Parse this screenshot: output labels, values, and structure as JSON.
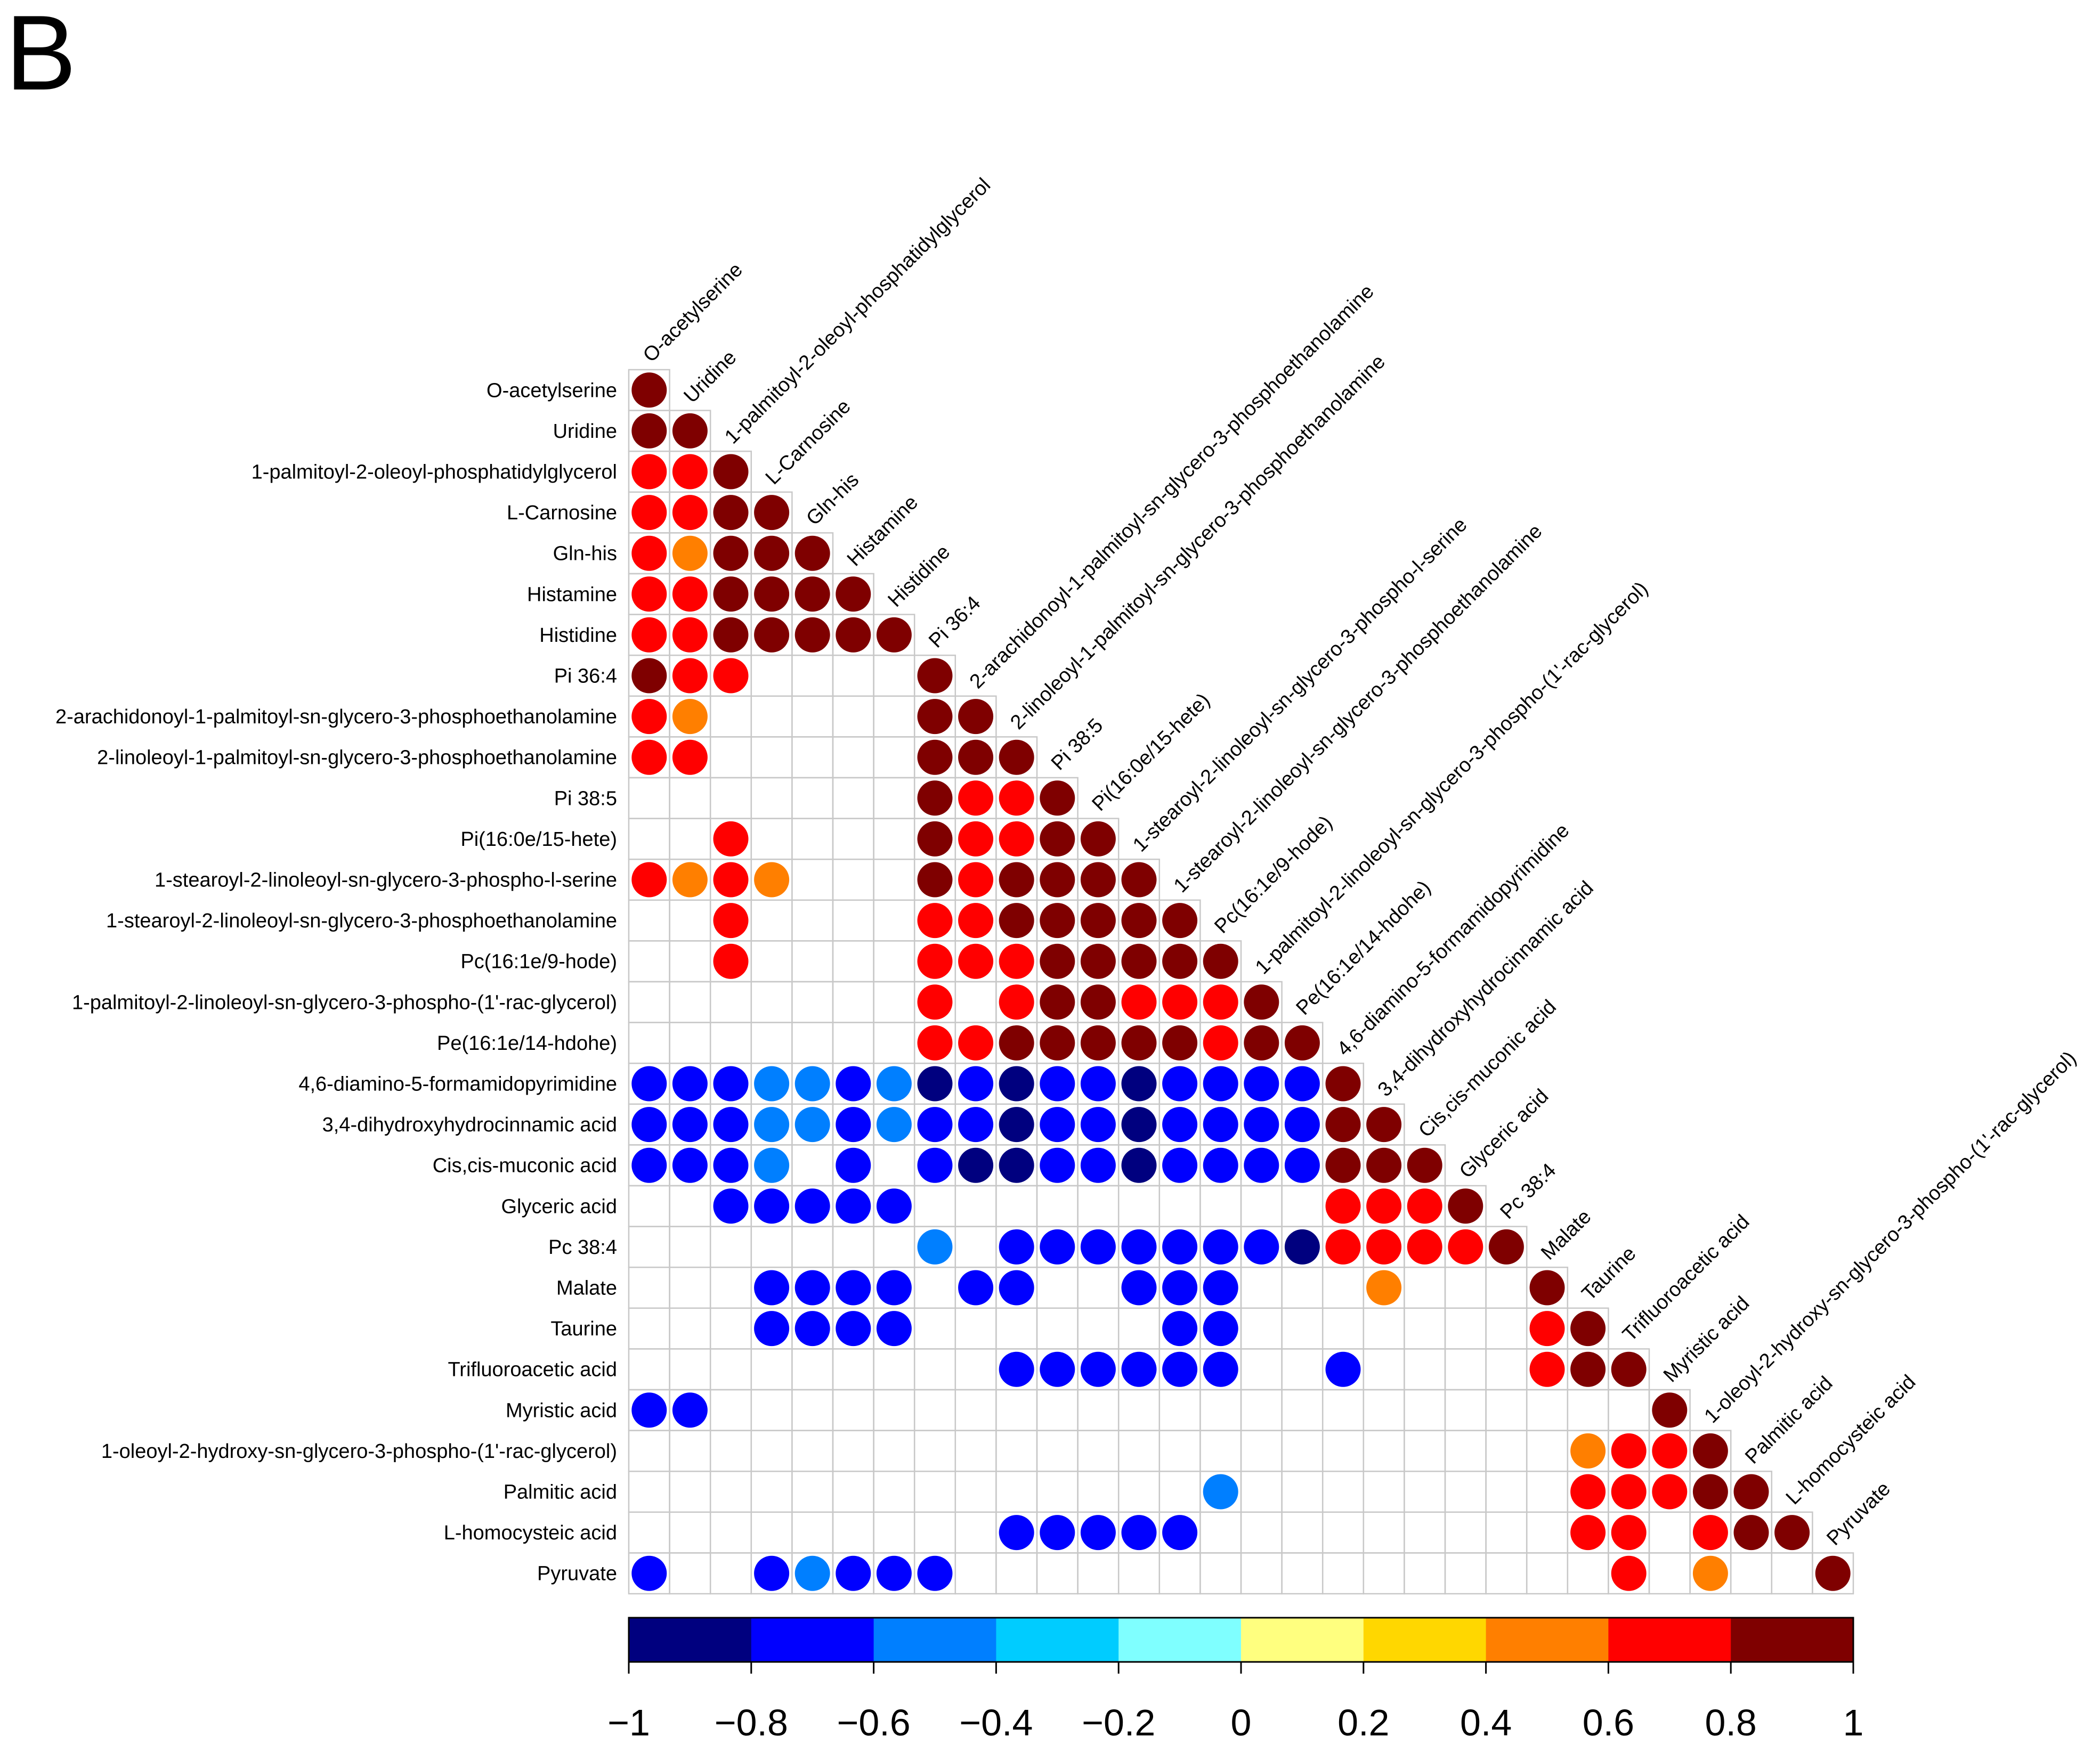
{
  "panel_label": "B",
  "chart_data": {
    "type": "heatmap",
    "subtype": "correlation-matrix-lower-triangle-circles",
    "title": "",
    "variables": [
      "O-acetylserine",
      "Uridine",
      "1-palmitoyl-2-oleoyl-phosphatidylglycerol",
      "L-Carnosine",
      "Gln-his",
      "Histamine",
      "Histidine",
      "Pi 36:4",
      "2-arachidonoyl-1-palmitoyl-sn-glycero-3-phosphoethanolamine",
      "2-linoleoyl-1-palmitoyl-sn-glycero-3-phosphoethanolamine",
      "Pi 38:5",
      "Pi(16:0e/15-hete)",
      "1-stearoyl-2-linoleoyl-sn-glycero-3-phospho-l-serine",
      "1-stearoyl-2-linoleoyl-sn-glycero-3-phosphoethanolamine",
      "Pc(16:1e/9-hode)",
      "1-palmitoyl-2-linoleoyl-sn-glycero-3-phospho-(1'-rac-glycerol)",
      "Pe(16:1e/14-hdohe)",
      "4,6-diamino-5-formamidopyrimidine",
      "3,4-dihydroxyhydrocinnamic acid",
      "Cis,cis-muconic acid",
      "Glyceric acid",
      "Pc 38:4",
      "Malate",
      "Taurine",
      "Trifluoroacetic acid",
      "Myristic acid",
      "1-oleoyl-2-hydroxy-sn-glycero-3-phospho-(1'-rac-glycerol)",
      "Palmitic acid",
      "L-homocysteic acid",
      "Pyruvate"
    ],
    "rows": [
      [
        0.9
      ],
      [
        0.9,
        0.9
      ],
      [
        0.7,
        0.7,
        0.9
      ],
      [
        0.7,
        0.7,
        0.9,
        0.9
      ],
      [
        0.7,
        0.5,
        0.9,
        0.9,
        0.9
      ],
      [
        0.7,
        0.7,
        0.9,
        0.9,
        0.9,
        0.9
      ],
      [
        0.7,
        0.7,
        0.9,
        0.9,
        0.9,
        0.9,
        0.9
      ],
      [
        0.9,
        0.7,
        0.7,
        null,
        null,
        null,
        null,
        0.9
      ],
      [
        0.7,
        0.5,
        null,
        null,
        null,
        null,
        null,
        0.9,
        0.9
      ],
      [
        0.7,
        0.7,
        null,
        null,
        null,
        null,
        null,
        0.9,
        0.9,
        0.9
      ],
      [
        null,
        null,
        null,
        null,
        null,
        null,
        null,
        0.9,
        0.7,
        0.7,
        0.9
      ],
      [
        null,
        null,
        0.7,
        null,
        null,
        null,
        null,
        0.9,
        0.7,
        0.7,
        0.9,
        0.9
      ],
      [
        0.7,
        0.5,
        0.7,
        0.5,
        null,
        null,
        null,
        0.9,
        0.7,
        0.9,
        0.9,
        0.9,
        0.9
      ],
      [
        null,
        null,
        0.7,
        null,
        null,
        null,
        null,
        0.7,
        0.7,
        0.9,
        0.9,
        0.9,
        0.9,
        0.9
      ],
      [
        null,
        null,
        0.7,
        null,
        null,
        null,
        null,
        0.7,
        0.7,
        0.7,
        0.9,
        0.9,
        0.9,
        0.9,
        0.9
      ],
      [
        null,
        null,
        null,
        null,
        null,
        null,
        null,
        0.7,
        null,
        0.7,
        0.9,
        0.9,
        0.7,
        0.7,
        0.7,
        0.9
      ],
      [
        null,
        null,
        null,
        null,
        null,
        null,
        null,
        0.7,
        0.7,
        0.9,
        0.9,
        0.9,
        0.9,
        0.9,
        0.7,
        0.9,
        0.9
      ],
      [
        -0.7,
        -0.7,
        -0.7,
        -0.5,
        -0.5,
        -0.7,
        -0.5,
        -0.9,
        -0.7,
        -0.9,
        -0.7,
        -0.7,
        -0.9,
        -0.7,
        -0.7,
        -0.7,
        -0.7,
        0.9
      ],
      [
        -0.7,
        -0.7,
        -0.7,
        -0.5,
        -0.5,
        -0.7,
        -0.5,
        -0.7,
        -0.7,
        -0.9,
        -0.7,
        -0.7,
        -0.9,
        -0.7,
        -0.7,
        -0.7,
        -0.7,
        0.9,
        0.9
      ],
      [
        -0.7,
        -0.7,
        -0.7,
        -0.5,
        null,
        -0.7,
        null,
        -0.7,
        -0.9,
        -0.9,
        -0.7,
        -0.7,
        -0.9,
        -0.7,
        -0.7,
        -0.7,
        -0.7,
        0.9,
        0.9,
        0.9
      ],
      [
        null,
        null,
        -0.7,
        -0.7,
        -0.7,
        -0.7,
        -0.7,
        null,
        null,
        null,
        null,
        null,
        null,
        null,
        null,
        null,
        null,
        0.7,
        0.7,
        0.7,
        0.9
      ],
      [
        null,
        null,
        null,
        null,
        null,
        null,
        null,
        -0.5,
        null,
        -0.7,
        -0.7,
        -0.7,
        -0.7,
        -0.7,
        -0.7,
        -0.7,
        -0.9,
        0.7,
        0.7,
        0.7,
        0.7,
        0.9
      ],
      [
        null,
        null,
        null,
        -0.7,
        -0.7,
        -0.7,
        -0.7,
        null,
        -0.7,
        -0.7,
        null,
        null,
        -0.7,
        -0.7,
        -0.7,
        null,
        null,
        null,
        0.5,
        null,
        null,
        null,
        0.9
      ],
      [
        null,
        null,
        null,
        -0.7,
        -0.7,
        -0.7,
        -0.7,
        null,
        null,
        null,
        null,
        null,
        null,
        -0.7,
        -0.7,
        null,
        null,
        null,
        null,
        null,
        null,
        null,
        0.7,
        0.9
      ],
      [
        null,
        null,
        null,
        null,
        null,
        null,
        null,
        null,
        null,
        -0.7,
        -0.7,
        -0.7,
        -0.7,
        -0.7,
        -0.7,
        null,
        null,
        -0.7,
        null,
        null,
        null,
        null,
        0.7,
        0.9,
        0.9
      ],
      [
        -0.7,
        -0.7,
        null,
        null,
        null,
        null,
        null,
        null,
        null,
        null,
        null,
        null,
        null,
        null,
        null,
        null,
        null,
        null,
        null,
        null,
        null,
        null,
        null,
        null,
        null,
        0.9
      ],
      [
        null,
        null,
        null,
        null,
        null,
        null,
        null,
        null,
        null,
        null,
        null,
        null,
        null,
        null,
        null,
        null,
        null,
        null,
        null,
        null,
        null,
        null,
        null,
        0.5,
        0.7,
        0.7,
        0.9
      ],
      [
        null,
        null,
        null,
        null,
        null,
        null,
        null,
        null,
        null,
        null,
        null,
        null,
        null,
        null,
        -0.5,
        null,
        null,
        null,
        null,
        null,
        null,
        null,
        null,
        0.7,
        0.7,
        0.7,
        0.9,
        0.9
      ],
      [
        null,
        null,
        null,
        null,
        null,
        null,
        null,
        null,
        null,
        -0.7,
        -0.7,
        -0.7,
        -0.7,
        -0.7,
        null,
        null,
        null,
        null,
        null,
        null,
        null,
        null,
        null,
        0.7,
        0.7,
        null,
        0.7,
        0.9,
        0.9
      ],
      [
        -0.7,
        null,
        null,
        -0.7,
        -0.5,
        -0.7,
        -0.7,
        -0.7,
        null,
        null,
        null,
        null,
        null,
        null,
        null,
        null,
        null,
        null,
        null,
        null,
        null,
        null,
        null,
        null,
        0.7,
        null,
        0.5,
        null,
        null,
        0.9
      ]
    ],
    "color_scale": {
      "min": -1,
      "max": 1,
      "colors": [
        "#00007F",
        "#0000FF",
        "#007FFF",
        "#00CCFF",
        "#7FFFFF",
        "#FFFF7F",
        "#FFD700",
        "#FF7F00",
        "#FF0000",
        "#7F0000"
      ],
      "tick_labels": [
        "−1",
        "−0.8",
        "−0.6",
        "−0.4",
        "−0.2",
        "0",
        "0.2",
        "0.4",
        "0.6",
        "0.8",
        "1"
      ]
    },
    "xlabel": "",
    "ylabel": ""
  }
}
